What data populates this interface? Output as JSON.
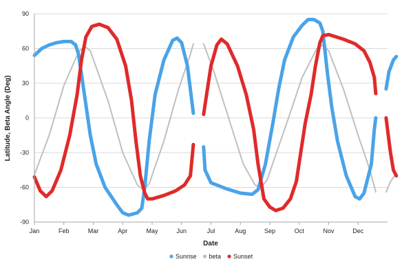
{
  "chart_data": {
    "type": "line",
    "title": "",
    "xlabel": "Date",
    "ylabel": "Latitude, Beta Angle (Deg)",
    "ylim": [
      -90,
      90
    ],
    "yticks": [
      -90,
      -60,
      -30,
      0,
      30,
      60,
      90
    ],
    "xlim": [
      0,
      12
    ],
    "grid": "horizontal",
    "legend_position": "bottom",
    "categories": [
      "Jan",
      "Feb",
      "Mar",
      "Apr",
      "May",
      "Jun",
      "Jul",
      "Aug",
      "Sep",
      "Oct",
      "Nov",
      "Dec"
    ],
    "series": [
      {
        "name": "Sunrise",
        "color": "#4aa3e8",
        "segments": [
          [
            [
              0,
              54
            ],
            [
              0.25,
              60
            ],
            [
              0.5,
              63
            ],
            [
              0.75,
              65
            ],
            [
              1.0,
              66
            ],
            [
              1.25,
              66
            ],
            [
              1.4,
              63
            ],
            [
              1.5,
              55
            ],
            [
              1.7,
              20
            ],
            [
              1.9,
              -15
            ],
            [
              2.1,
              -40
            ],
            [
              2.4,
              -60
            ],
            [
              2.8,
              -75
            ],
            [
              3.0,
              -82
            ],
            [
              3.2,
              -84
            ],
            [
              3.5,
              -82
            ],
            [
              3.65,
              -78
            ],
            [
              3.75,
              -60
            ],
            [
              3.9,
              -20
            ],
            [
              4.1,
              20
            ],
            [
              4.4,
              50
            ],
            [
              4.7,
              67
            ],
            [
              4.85,
              69
            ],
            [
              5.0,
              65
            ],
            [
              5.2,
              45
            ],
            [
              5.4,
              4
            ]
          ],
          [
            [
              5.75,
              -25
            ],
            [
              5.8,
              -45
            ],
            [
              6.0,
              -56
            ],
            [
              6.5,
              -61
            ],
            [
              7.0,
              -65
            ],
            [
              7.4,
              -66
            ],
            [
              7.6,
              -62
            ],
            [
              7.85,
              -40
            ],
            [
              8.1,
              -5
            ],
            [
              8.3,
              25
            ],
            [
              8.5,
              50
            ],
            [
              8.8,
              70
            ],
            [
              9.1,
              80
            ],
            [
              9.3,
              85
            ],
            [
              9.5,
              85
            ],
            [
              9.7,
              82
            ],
            [
              9.8,
              75
            ],
            [
              9.95,
              40
            ],
            [
              10.1,
              10
            ],
            [
              10.3,
              -20
            ],
            [
              10.6,
              -50
            ],
            [
              10.9,
              -68
            ],
            [
              11.05,
              -70
            ],
            [
              11.2,
              -65
            ],
            [
              11.45,
              -40
            ],
            [
              11.55,
              -10
            ],
            [
              11.6,
              0
            ]
          ],
          [
            [
              11.95,
              25
            ],
            [
              12.05,
              40
            ],
            [
              12.2,
              50
            ],
            [
              12.3,
              53
            ]
          ]
        ]
      },
      {
        "name": "beta",
        "color": "#bfbfbf",
        "segments": [
          [
            [
              0,
              -49
            ],
            [
              0.5,
              -15
            ],
            [
              1.0,
              28
            ],
            [
              1.5,
              57
            ],
            [
              1.7,
              62
            ],
            [
              1.9,
              58
            ],
            [
              2.5,
              15
            ],
            [
              3.0,
              -30
            ],
            [
              3.5,
              -58
            ],
            [
              3.7,
              -62
            ],
            [
              3.9,
              -57
            ],
            [
              4.4,
              -20
            ],
            [
              4.9,
              25
            ],
            [
              5.3,
              55
            ],
            [
              5.4,
              64
            ]
          ],
          [
            [
              5.75,
              64
            ],
            [
              6.1,
              40
            ],
            [
              6.6,
              0
            ],
            [
              7.1,
              -40
            ],
            [
              7.5,
              -58
            ],
            [
              7.7,
              -60
            ],
            [
              7.9,
              -54
            ],
            [
              8.5,
              -10
            ],
            [
              9.1,
              35
            ],
            [
              9.6,
              60
            ],
            [
              9.8,
              63
            ],
            [
              10.0,
              58
            ],
            [
              10.5,
              25
            ],
            [
              11.0,
              -15
            ],
            [
              11.4,
              -45
            ],
            [
              11.6,
              -64
            ]
          ],
          [
            [
              11.95,
              -64
            ],
            [
              12.1,
              -55
            ],
            [
              12.3,
              -48
            ]
          ]
        ]
      },
      {
        "name": "Sunset",
        "color": "#e02a2a",
        "segments": [
          [
            [
              0,
              -51
            ],
            [
              0.2,
              -63
            ],
            [
              0.4,
              -68
            ],
            [
              0.6,
              -63
            ],
            [
              0.9,
              -45
            ],
            [
              1.2,
              -15
            ],
            [
              1.45,
              20
            ],
            [
              1.6,
              50
            ],
            [
              1.75,
              70
            ],
            [
              1.95,
              79
            ],
            [
              2.2,
              81
            ],
            [
              2.5,
              78
            ],
            [
              2.8,
              68
            ],
            [
              3.1,
              45
            ],
            [
              3.3,
              15
            ],
            [
              3.45,
              -20
            ],
            [
              3.6,
              -50
            ],
            [
              3.75,
              -65
            ],
            [
              3.85,
              -70
            ],
            [
              4.0,
              -70
            ],
            [
              4.4,
              -67
            ],
            [
              4.8,
              -63
            ],
            [
              5.1,
              -58
            ],
            [
              5.3,
              -50
            ],
            [
              5.4,
              -23
            ]
          ],
          [
            [
              5.75,
              3
            ],
            [
              5.85,
              20
            ],
            [
              6.0,
              45
            ],
            [
              6.2,
              63
            ],
            [
              6.35,
              68
            ],
            [
              6.55,
              64
            ],
            [
              6.9,
              45
            ],
            [
              7.2,
              20
            ],
            [
              7.45,
              -10
            ],
            [
              7.6,
              -40
            ],
            [
              7.8,
              -70
            ],
            [
              8.0,
              -77
            ],
            [
              8.2,
              -80
            ],
            [
              8.45,
              -78
            ],
            [
              8.7,
              -70
            ],
            [
              8.9,
              -55
            ],
            [
              9.05,
              -30
            ],
            [
              9.2,
              -5
            ],
            [
              9.4,
              20
            ],
            [
              9.55,
              45
            ],
            [
              9.7,
              65
            ],
            [
              9.8,
              71
            ],
            [
              10.0,
              72
            ],
            [
              10.5,
              68
            ],
            [
              10.9,
              64
            ],
            [
              11.2,
              58
            ],
            [
              11.4,
              48
            ],
            [
              11.55,
              35
            ],
            [
              11.6,
              21
            ]
          ],
          [
            [
              11.95,
              0
            ],
            [
              12.0,
              -10
            ],
            [
              12.1,
              -30
            ],
            [
              12.2,
              -45
            ],
            [
              12.3,
              -50
            ]
          ]
        ]
      }
    ]
  }
}
